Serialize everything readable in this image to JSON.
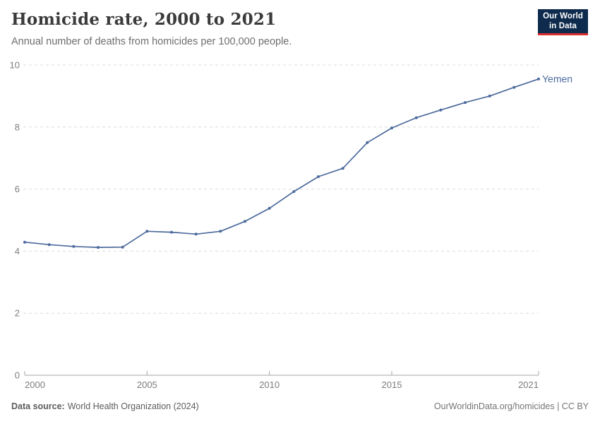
{
  "header": {
    "title": "Homicide rate, 2000 to 2021",
    "subtitle": "Annual number of deaths from homicides per 100,000 people.",
    "logo": {
      "line1": "Our World",
      "line2": "in Data"
    }
  },
  "chart_data": {
    "type": "line",
    "title": "Homicide rate, 2000 to 2021",
    "subtitle": "Annual number of deaths from homicides per 100,000 people.",
    "xlabel": "",
    "ylabel": "Annual number of deaths from homicides per 100,000 people",
    "xlim": [
      2000,
      2021
    ],
    "ylim": [
      0,
      10
    ],
    "xticks": [
      2000,
      2005,
      2010,
      2015,
      2021
    ],
    "yticks": [
      0,
      2,
      4,
      6,
      8,
      10
    ],
    "grid": "horizontal-dashed",
    "legend_position": "end-of-line",
    "series": [
      {
        "name": "Yemen",
        "color": "#4C6A9C",
        "x": [
          2000,
          2001,
          2002,
          2003,
          2004,
          2005,
          2006,
          2007,
          2008,
          2009,
          2010,
          2011,
          2012,
          2013,
          2014,
          2015,
          2016,
          2017,
          2018,
          2019,
          2020,
          2021
        ],
        "values": [
          4.29,
          4.21,
          4.15,
          4.12,
          4.13,
          4.64,
          4.61,
          4.55,
          4.64,
          4.96,
          5.38,
          5.92,
          6.4,
          6.67,
          7.5,
          7.97,
          8.3,
          8.55,
          8.79,
          9.0,
          9.28,
          9.55
        ]
      }
    ]
  },
  "footer": {
    "source_label": "Data source:",
    "source_value": "World Health Organization (2024)",
    "attribution": "OurWorldinData.org/homicides | CC BY"
  },
  "colors": {
    "accent_line": "#4C6A9C",
    "series_label": "#4C6A9C",
    "logo_bg": "#0e2b4d",
    "logo_red": "#dc2c2f",
    "grid": "#dcdcdc",
    "axis": "#a6a6a6",
    "tick_label": "#7d7d7d"
  }
}
